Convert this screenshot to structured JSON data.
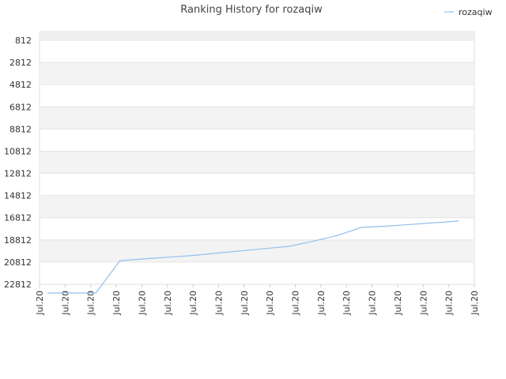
{
  "chart_data": {
    "type": "line",
    "title": "Ranking History for rozaqiw",
    "xlabel": "",
    "ylabel": "",
    "x": [
      "Jul.20",
      "Jul.20",
      "Jul.20",
      "Jul.20",
      "Jul.20",
      "Jul.20",
      "Jul.20",
      "Jul.20",
      "Jul.20",
      "Jul.20",
      "Jul.20",
      "Jul.20",
      "Jul.20",
      "Jul.20",
      "Jul.20",
      "Jul.20",
      "Jul.20",
      "Jul.20"
    ],
    "y_reversed": true,
    "ylim": [
      812,
      22812
    ],
    "yticks": [
      "812",
      "2812",
      "4812",
      "6812",
      "8812",
      "10812",
      "12812",
      "14812",
      "16812",
      "18812",
      "20812",
      "22812"
    ],
    "grid": true,
    "legend_position": "top-right",
    "series": [
      {
        "name": "rozaqiw",
        "color": "#90c0ee",
        "values": [
          22812,
          22812,
          22812,
          20000,
          19850,
          19700,
          19550,
          19350,
          19150,
          18950,
          18750,
          18300,
          17800,
          17100,
          17000,
          16850,
          16700,
          16550
        ]
      }
    ]
  }
}
